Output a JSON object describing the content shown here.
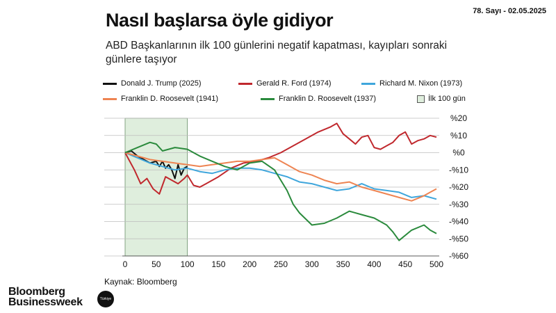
{
  "issue": "78. Sayı - 02.05.2025",
  "title": "Nasıl başlarsa öyle gidiyor",
  "subtitle": "ABD Başkanlarının ilk 100 günlerini negatif kapatması, kayıpları sonraki günlere taşıyor",
  "source": "Kaynak: Bloomberg",
  "logo": {
    "line1": "Bloomberg",
    "line2": "Businessweek",
    "badge": "Türkiye"
  },
  "colors": {
    "trump": "#111111",
    "ford": "#c0282d",
    "nixon": "#3fa6dc",
    "fdr1941": "#ee8452",
    "fdr1937": "#2a8a3c",
    "shade": "#dfeedd",
    "grid": "#bdbdbd"
  },
  "chart_data": {
    "type": "line",
    "title": "Nasıl başlarsa öyle gidiyor",
    "xlabel": "",
    "ylabel": "",
    "xlim": [
      0,
      500
    ],
    "ylim": [
      -60,
      20
    ],
    "x_ticks": [
      0,
      50,
      100,
      150,
      200,
      250,
      300,
      350,
      400,
      450,
      500
    ],
    "y_ticks": [
      20,
      10,
      0,
      -10,
      -20,
      -30,
      -40,
      -50,
      -60
    ],
    "y_tick_labels": [
      "%20",
      "%10",
      "%0",
      "-%10",
      "-%20",
      "-%30",
      "-%40",
      "-%50",
      "-%60"
    ],
    "shaded_region": {
      "label": "İlk 100 gün",
      "x": [
        0,
        100
      ]
    },
    "series": [
      {
        "key": "trump",
        "name": "Donald J. Trump (2025)",
        "x": [
          0,
          10,
          20,
          30,
          40,
          50,
          55,
          60,
          65,
          70,
          75,
          80,
          85,
          90,
          95,
          100
        ],
        "y": [
          0,
          1,
          -2,
          -4,
          -6,
          -5,
          -8,
          -5,
          -9,
          -7,
          -10,
          -15,
          -7,
          -13,
          -9,
          -8
        ]
      },
      {
        "key": "ford",
        "name": "Gerald R. Ford (1974)",
        "x": [
          0,
          15,
          25,
          35,
          45,
          55,
          65,
          75,
          85,
          95,
          100,
          110,
          120,
          130,
          150,
          170,
          190,
          210,
          230,
          250,
          270,
          290,
          310,
          330,
          340,
          350,
          360,
          370,
          380,
          390,
          400,
          410,
          420,
          430,
          440,
          450,
          460,
          470,
          480,
          490,
          500
        ],
        "y": [
          0,
          -10,
          -18,
          -15,
          -21,
          -24,
          -14,
          -16,
          -18,
          -15,
          -13,
          -19,
          -20,
          -18,
          -14,
          -9,
          -6,
          -5,
          -3,
          0,
          4,
          8,
          12,
          15,
          17,
          11,
          8,
          5,
          9,
          10,
          3,
          2,
          4,
          6,
          10,
          12,
          5,
          7,
          8,
          10,
          9
        ]
      },
      {
        "key": "nixon",
        "name": "Richard M. Nixon (1973)",
        "x": [
          0,
          20,
          40,
          60,
          80,
          100,
          120,
          140,
          160,
          180,
          200,
          220,
          240,
          260,
          280,
          300,
          320,
          340,
          360,
          380,
          400,
          420,
          440,
          460,
          480,
          500
        ],
        "y": [
          0,
          -3,
          -6,
          -8,
          -10,
          -9,
          -11,
          -12,
          -10,
          -9,
          -9,
          -10,
          -12,
          -14,
          -17,
          -18,
          -20,
          -22,
          -21,
          -18,
          -21,
          -22,
          -23,
          -26,
          -25,
          -27
        ]
      },
      {
        "key": "fdr1941",
        "name": "Franklin D. Roosevelt (1941)",
        "x": [
          0,
          20,
          40,
          60,
          80,
          100,
          120,
          140,
          160,
          180,
          200,
          220,
          240,
          260,
          280,
          300,
          320,
          340,
          360,
          380,
          400,
          420,
          440,
          460,
          480,
          490,
          500
        ],
        "y": [
          0,
          -2,
          -4,
          -5,
          -6,
          -7,
          -8,
          -7,
          -6,
          -5,
          -5,
          -4,
          -3,
          -7,
          -11,
          -13,
          -16,
          -18,
          -17,
          -20,
          -22,
          -24,
          -26,
          -28,
          -25,
          -23,
          -21
        ]
      },
      {
        "key": "fdr1937",
        "name": "Franklin D. Roosevelt (1937)",
        "x": [
          0,
          20,
          40,
          50,
          60,
          80,
          100,
          120,
          140,
          160,
          180,
          200,
          220,
          240,
          260,
          270,
          280,
          300,
          320,
          340,
          360,
          380,
          400,
          420,
          430,
          440,
          460,
          480,
          490,
          500
        ],
        "y": [
          0,
          3,
          6,
          5,
          1,
          3,
          2,
          -2,
          -5,
          -8,
          -10,
          -6,
          -5,
          -10,
          -22,
          -30,
          -35,
          -42,
          -41,
          -38,
          -34,
          -36,
          -38,
          -42,
          -46,
          -51,
          -45,
          -42,
          -45,
          -47
        ]
      }
    ]
  }
}
